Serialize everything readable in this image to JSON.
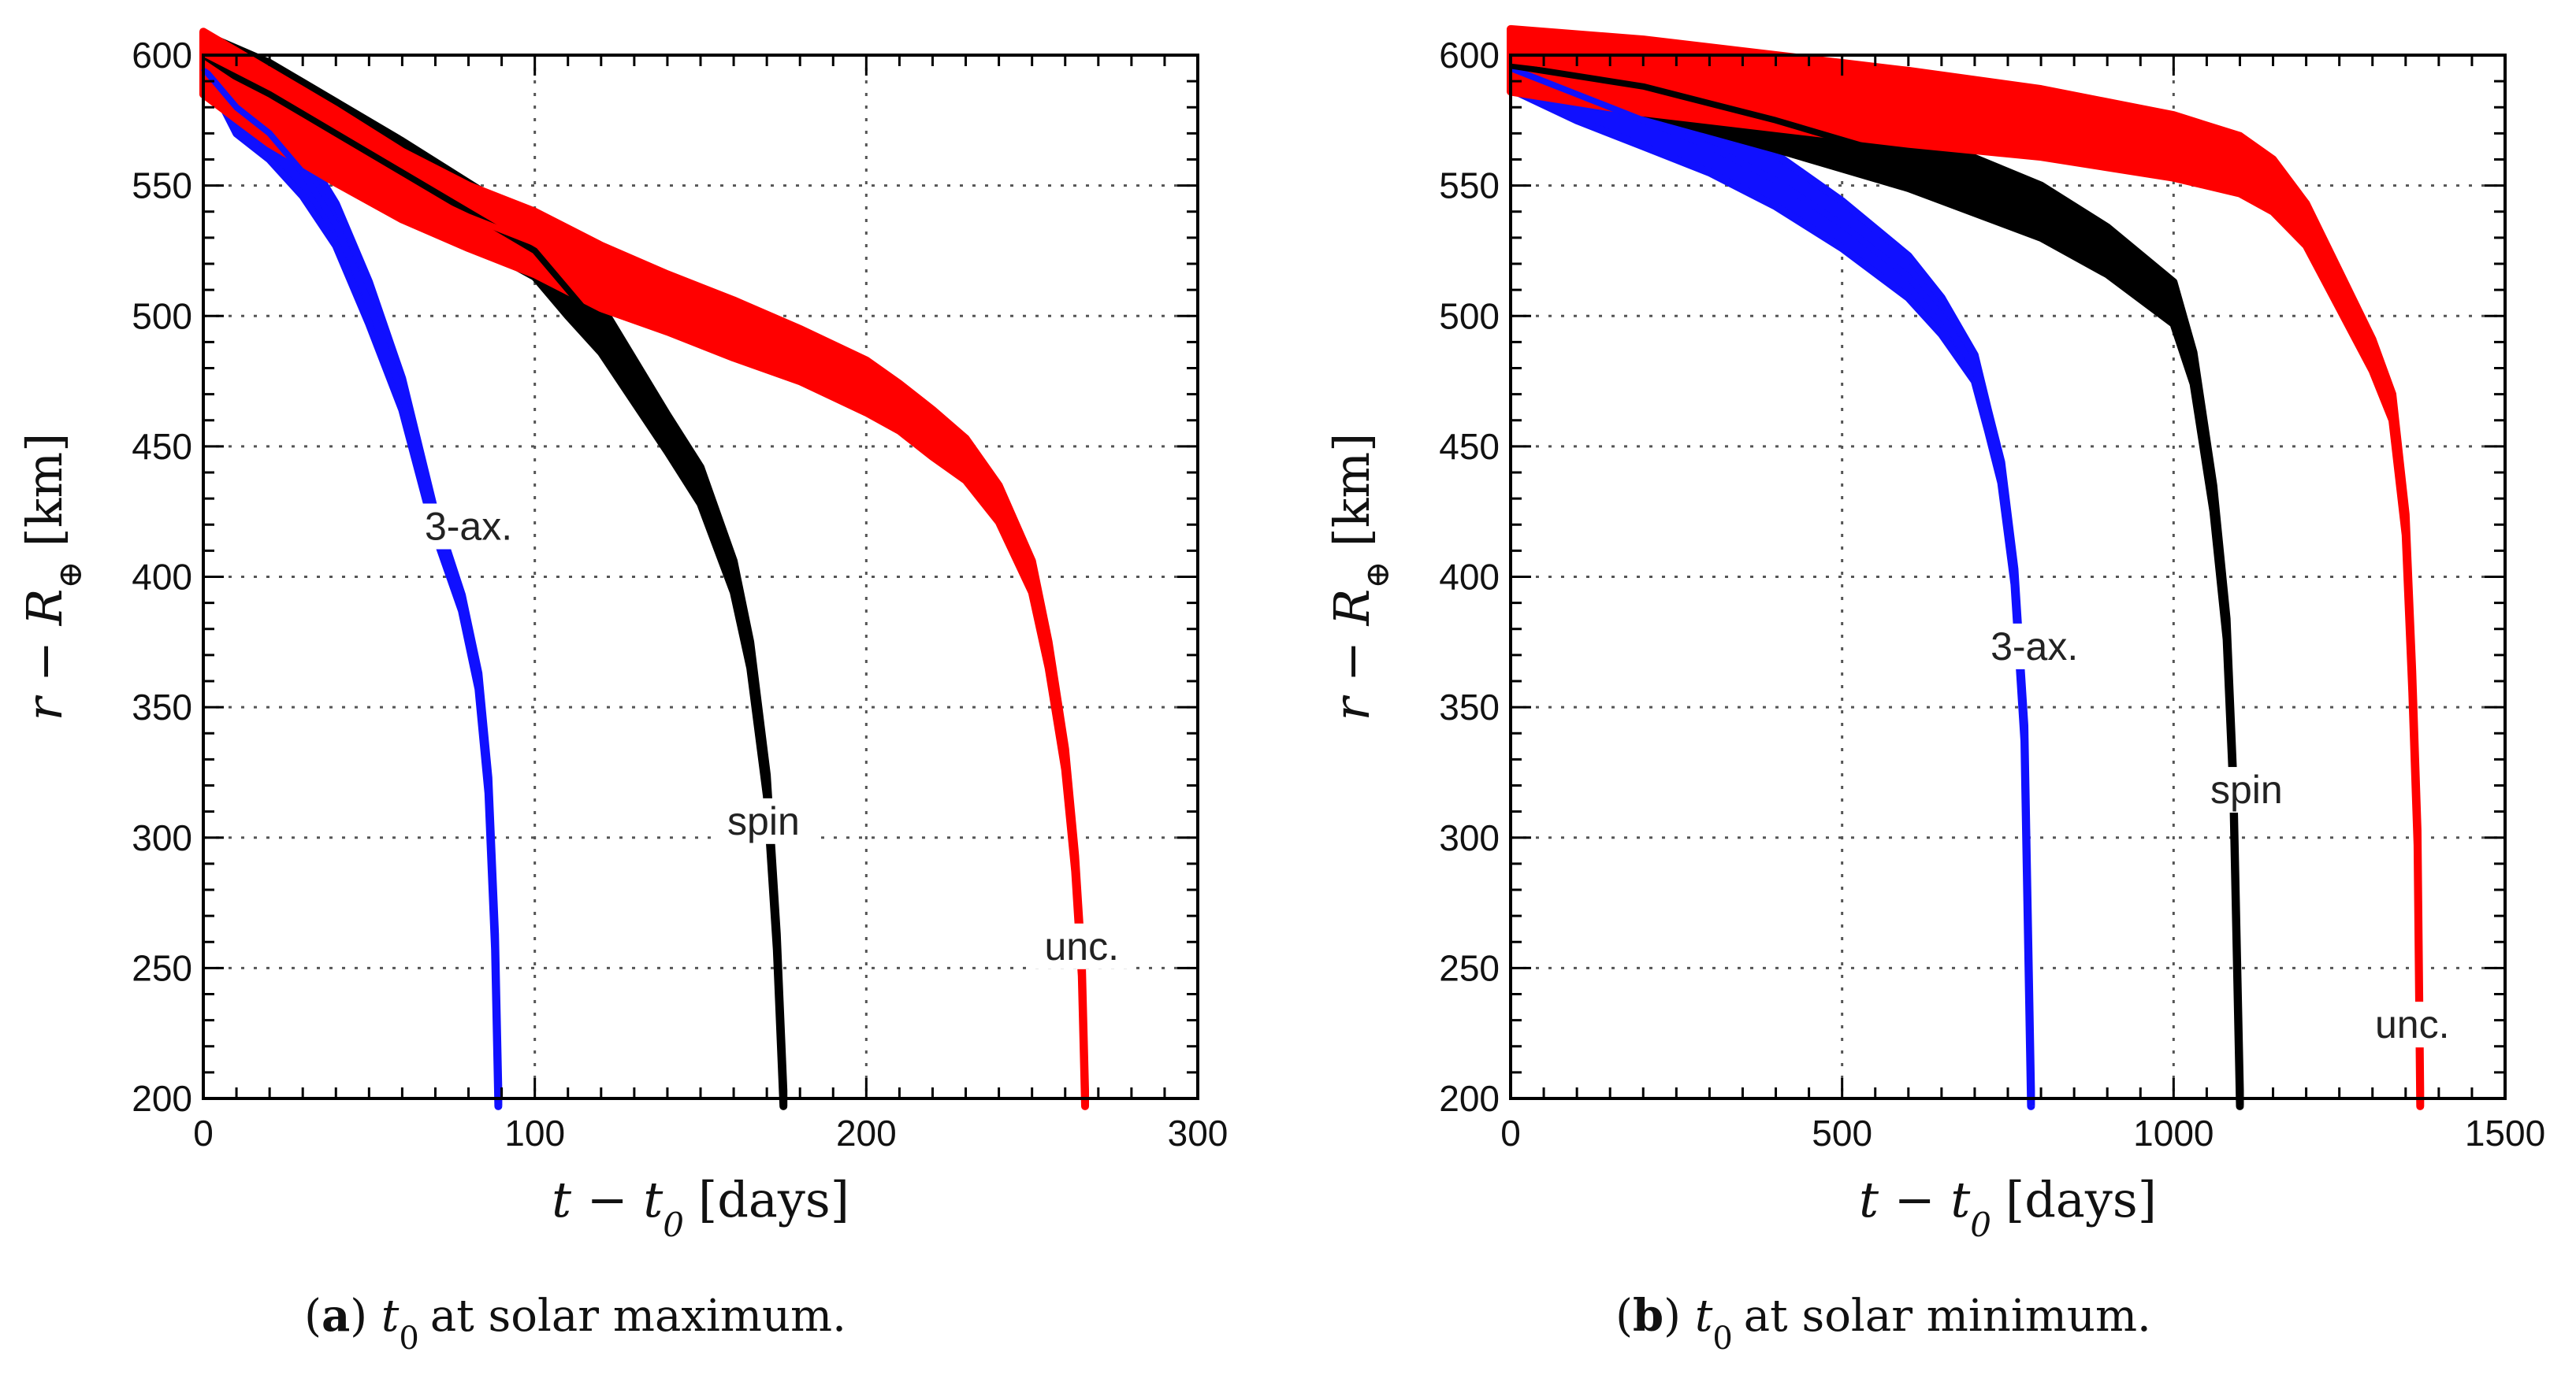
{
  "chart_data": [
    {
      "type": "line",
      "caption": {
        "tag": "a",
        "var": "t",
        "sub": "0",
        "text": "at solar maximum."
      },
      "xlabel": {
        "main": "t − t",
        "sub": "0",
        "unit": "[days]"
      },
      "ylabel": {
        "main": "r − R",
        "sub": "⊕",
        "unit": "[km]"
      },
      "xlim": [
        0,
        300
      ],
      "ylim": [
        200,
        600
      ],
      "xticks": [
        0,
        100,
        200,
        300
      ],
      "yticks": [
        200,
        250,
        300,
        350,
        400,
        450,
        500,
        550,
        600
      ],
      "grid": true,
      "series": [
        {
          "name": "3-ax.",
          "color": "#1010ff",
          "label_at": [
            80,
            416
          ],
          "x": [
            0,
            10,
            20,
            30,
            40,
            50,
            60,
            70,
            78,
            83,
            86,
            88,
            89
          ],
          "y": [
            595,
            580,
            570,
            555,
            535,
            505,
            470,
            420,
            390,
            360,
            320,
            260,
            200
          ],
          "band": [
            0,
            10,
            10,
            9,
            8,
            8,
            6,
            4,
            3,
            3,
            3,
            3,
            3
          ]
        },
        {
          "name": "spin",
          "color": "#000000",
          "label_at": [
            169,
            303
          ],
          "x": [
            0,
            20,
            40,
            60,
            80,
            100,
            110,
            120,
            130,
            140,
            150,
            160,
            165,
            170,
            173,
            175
          ],
          "y": [
            598,
            585,
            570,
            555,
            540,
            525,
            510,
            495,
            475,
            455,
            435,
            400,
            370,
            320,
            260,
            200
          ],
          "band": [
            10,
            12,
            12,
            12,
            11,
            10,
            10,
            9,
            8,
            7,
            7,
            6,
            5,
            4,
            3,
            3
          ]
        },
        {
          "name": "unc.",
          "color": "#ff0000",
          "label_at": [
            265,
            255
          ],
          "x": [
            0,
            20,
            40,
            60,
            80,
            100,
            120,
            140,
            160,
            180,
            200,
            210,
            220,
            230,
            240,
            250,
            255,
            260,
            263,
            265,
            266
          ],
          "y": [
            597,
            580,
            565,
            550,
            538,
            528,
            515,
            505,
            495,
            485,
            473,
            465,
            455,
            445,
            428,
            400,
            370,
            330,
            290,
            250,
            200
          ],
          "band": [
            12,
            14,
            14,
            13,
            12,
            12,
            12,
            11,
            11,
            10,
            10,
            9,
            9,
            8,
            7,
            6,
            5,
            4,
            3,
            3,
            3
          ]
        }
      ]
    },
    {
      "type": "line",
      "caption": {
        "tag": "b",
        "var": "t",
        "sub": "0",
        "text": "at solar minimum."
      },
      "xlabel": {
        "main": "t − t",
        "sub": "0",
        "unit": "[days]"
      },
      "ylabel": {
        "main": "r − R",
        "sub": "⊕",
        "unit": "[km]"
      },
      "xlim": [
        0,
        1500
      ],
      "ylim": [
        200,
        600
      ],
      "xticks": [
        0,
        500,
        1000,
        1500
      ],
      "yticks": [
        200,
        250,
        300,
        350,
        400,
        450,
        500,
        550,
        600
      ],
      "grid": true,
      "series": [
        {
          "name": "3-ax.",
          "color": "#1010ff",
          "label_at": [
            790,
            370
          ],
          "x": [
            0,
            100,
            200,
            300,
            400,
            500,
            600,
            650,
            700,
            720,
            740,
            760,
            775,
            785
          ],
          "y": [
            595,
            585,
            575,
            565,
            552,
            535,
            515,
            500,
            480,
            460,
            440,
            400,
            340,
            200
          ],
          "band": [
            8,
            10,
            10,
            10,
            10,
            9,
            8,
            7,
            5,
            4,
            4,
            3,
            3,
            3
          ]
        },
        {
          "name": "spin",
          "color": "#000000",
          "label_at": [
            1110,
            315
          ],
          "x": [
            0,
            200,
            400,
            600,
            800,
            900,
            1000,
            1030,
            1060,
            1080,
            1090,
            1100
          ],
          "y": [
            596,
            588,
            575,
            560,
            540,
            525,
            505,
            480,
            430,
            380,
            320,
            200
          ],
          "band": [
            8,
            10,
            11,
            11,
            10,
            9,
            8,
            6,
            5,
            4,
            3,
            3
          ]
        },
        {
          "name": "unc.",
          "color": "#ff0000",
          "label_at": [
            1360,
            225
          ],
          "x": [
            0,
            200,
            400,
            600,
            800,
            1000,
            1100,
            1150,
            1200,
            1250,
            1300,
            1330,
            1350,
            1360,
            1368,
            1372
          ],
          "y": [
            598,
            592,
            586,
            580,
            574,
            565,
            558,
            550,
            535,
            510,
            485,
            465,
            420,
            360,
            300,
            200
          ],
          "band": [
            12,
            14,
            14,
            14,
            13,
            12,
            11,
            10,
            8,
            7,
            6,
            5,
            4,
            4,
            3,
            3
          ]
        }
      ]
    }
  ]
}
